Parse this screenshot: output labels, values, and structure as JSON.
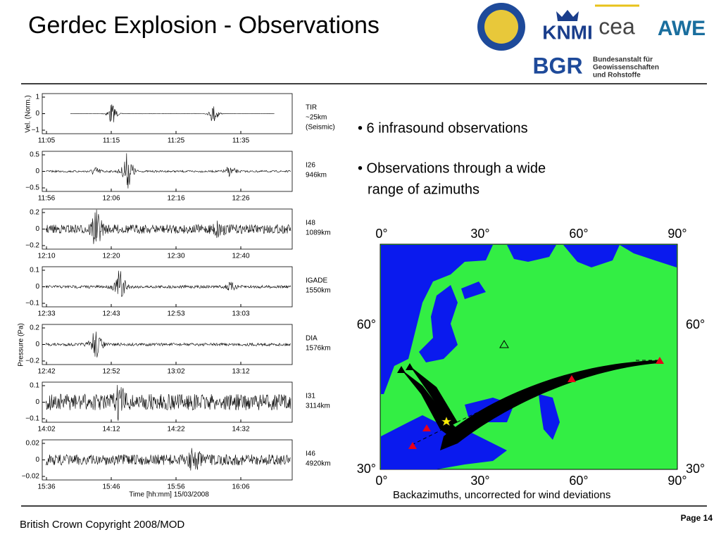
{
  "title": "Gerdec Explosion -  Observations",
  "logos": {
    "knmi": "KNMI",
    "cea": "cea",
    "awe": "AWE",
    "bgr": "BGR",
    "bgr_name": [
      "Bundesanstalt für",
      "Geowissenschaften",
      "und Rohstoffe"
    ]
  },
  "figure": {
    "vel_label": "Vel. (Norm.)",
    "pressure_label": "Pressure (Pa)",
    "time_label": "Time [hh:mm] 15/03/2008",
    "panels": [
      {
        "yticks": [
          "1",
          "0",
          "−1"
        ],
        "xticks": [
          "11:05",
          "11:15",
          "11:25",
          "11:35"
        ],
        "station": [
          "TIR",
          "~25km",
          "(Seismic)"
        ]
      },
      {
        "yticks": [
          "0.5",
          "0",
          "−0.5"
        ],
        "xticks": [
          "11:56",
          "12:06",
          "12:16",
          "12:26"
        ],
        "station": [
          "I26",
          "946km"
        ]
      },
      {
        "yticks": [
          "0.2",
          "0",
          "−0.2"
        ],
        "xticks": [
          "12:10",
          "12:20",
          "12:30",
          "12:40"
        ],
        "station": [
          "I48",
          "1089km"
        ]
      },
      {
        "yticks": [
          "0.1",
          "0",
          "−0.1"
        ],
        "xticks": [
          "12:33",
          "12:43",
          "12:53",
          "13:03"
        ],
        "station": [
          "IGADE",
          "1550km"
        ]
      },
      {
        "yticks": [
          "0.2",
          "0",
          "−0.2"
        ],
        "xticks": [
          "12:42",
          "12:52",
          "13:02",
          "13:12"
        ],
        "station": [
          "DIA",
          "1576km"
        ]
      },
      {
        "yticks": [
          "0.1",
          "0",
          "−0.1"
        ],
        "xticks": [
          "14:02",
          "14:12",
          "14:22",
          "14:32"
        ],
        "station": [
          "I31",
          "3114km"
        ]
      },
      {
        "yticks": [
          "0.02",
          "0",
          "−0.02"
        ],
        "xticks": [
          "15:36",
          "15:46",
          "15:56",
          "16:06"
        ],
        "station": [
          "I46",
          "4920km"
        ]
      }
    ]
  },
  "bullets": [
    "• 6 infrasound observations",
    "• Observations through a wide",
    "range of azimuths"
  ],
  "map": {
    "top_labels": [
      "0°",
      "30°",
      "60°",
      "90°"
    ],
    "bottom_labels": [
      "0°",
      "30°",
      "60°",
      "90°"
    ],
    "left_labels": [
      "60°",
      "30°"
    ],
    "right_labels": [
      "60°",
      "30°"
    ],
    "caption": "Backazimuths, uncorrected for wind deviations"
  },
  "footer": {
    "copyright": "British Crown Copyright 2008/MOD",
    "page": "Page 14"
  }
}
